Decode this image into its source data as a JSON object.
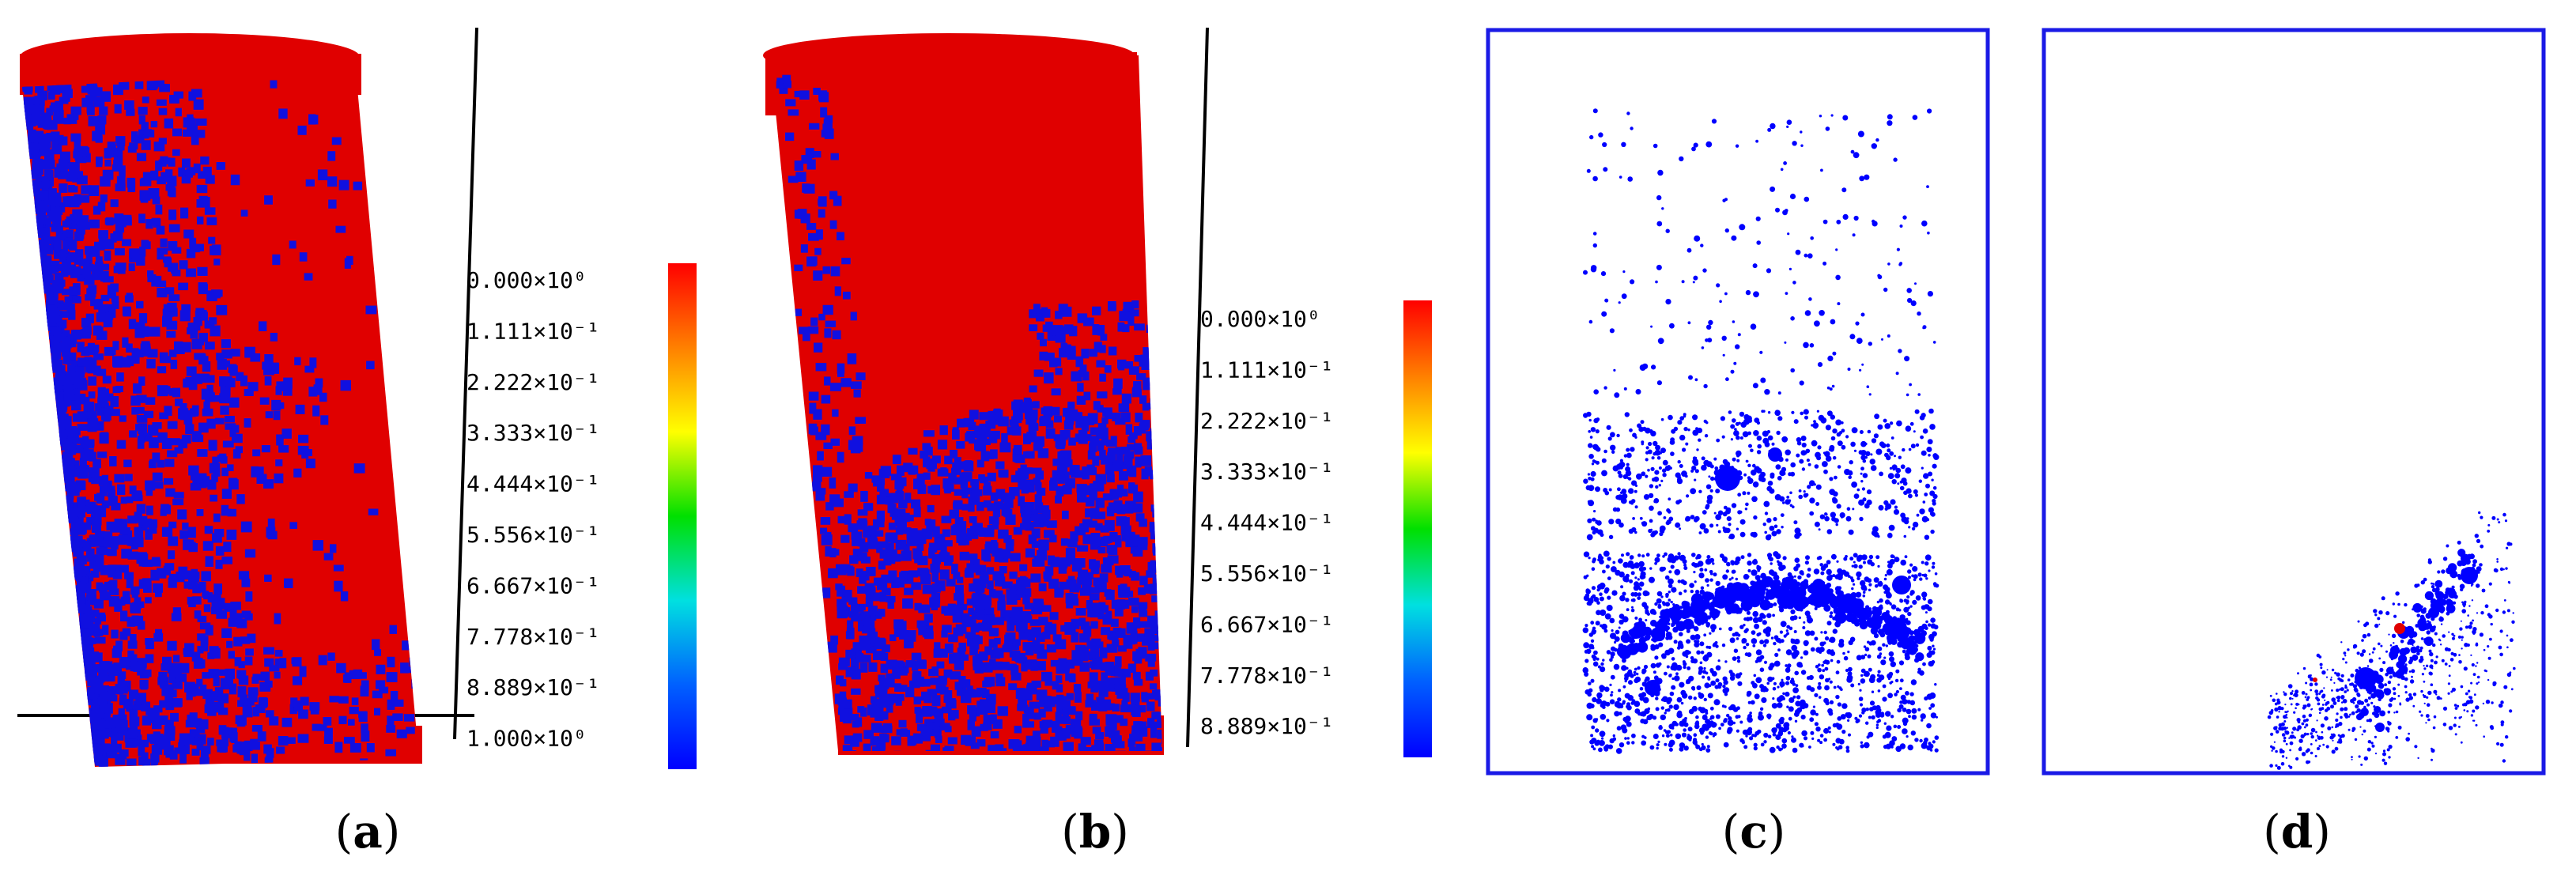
{
  "figure": {
    "panels": [
      {
        "id": "a",
        "caption_letter": "a",
        "colorbar_ticks": [
          "0.000×10⁰",
          "1.111×10⁻¹",
          "2.222×10⁻¹",
          "3.333×10⁻¹",
          "4.444×10⁻¹",
          "5.556×10⁻¹",
          "6.667×10⁻¹",
          "7.778×10⁻¹",
          "8.889×10⁻¹",
          "1.000×10⁰"
        ]
      },
      {
        "id": "b",
        "caption_letter": "b",
        "colorbar_ticks": [
          "0.000×10⁰",
          "1.111×10⁻¹",
          "2.222×10⁻¹",
          "3.333×10⁻¹",
          "4.444×10⁻¹",
          "5.556×10⁻¹",
          "6.667×10⁻¹",
          "7.778×10⁻¹",
          "8.889×10⁻¹"
        ]
      },
      {
        "id": "c",
        "caption_letter": "c"
      },
      {
        "id": "d",
        "caption_letter": "d"
      }
    ],
    "colors": {
      "specimen_red": "#e00000",
      "damage_blue": "#1010e0",
      "crack_blue": "#0000ff",
      "frame_blue": "#1a1ae6",
      "crack_red": "#e00000"
    },
    "colorbar_gradient": [
      "#ff0000",
      "#ff8000",
      "#ffff00",
      "#00e000",
      "#00e0e0",
      "#0060ff",
      "#0000ff"
    ]
  }
}
